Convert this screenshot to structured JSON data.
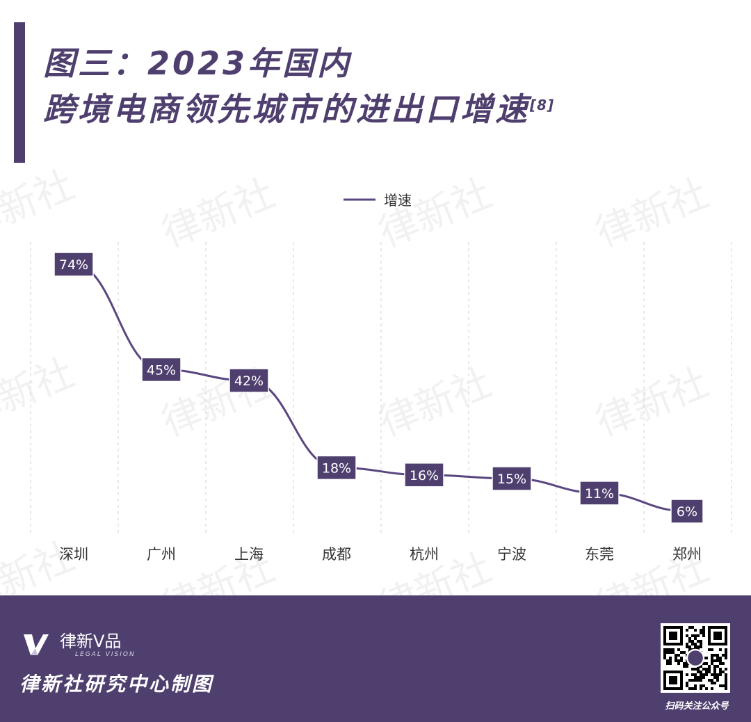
{
  "header": {
    "title_line1": "图三：2023年国内",
    "title_line2": "跨境电商领先城市的进出口增速",
    "reference": "[8]"
  },
  "watermark": {
    "text": "律新社"
  },
  "colors": {
    "brand": "#4f3f6e",
    "line": "#5a4680",
    "label_bg": "#4f3f6e",
    "grid": "#d9d9d9"
  },
  "chart_data": {
    "type": "line",
    "categories": [
      "深圳",
      "广州",
      "上海",
      "成都",
      "杭州",
      "宁波",
      "东莞",
      "郑州"
    ],
    "series": [
      {
        "name": "增速",
        "values": [
          74,
          45,
          42,
          18,
          16,
          15,
          11,
          6
        ],
        "unit": "%"
      }
    ],
    "data_labels": [
      "74%",
      "45%",
      "42%",
      "18%",
      "16%",
      "15%",
      "11%",
      "6%"
    ],
    "legend": "top-center",
    "grid": "vertical-dashed",
    "smooth": true
  },
  "footer": {
    "logo_name": "律新V品",
    "logo_sub": "LEGAL VISION",
    "credit": "律新社研究中心制图",
    "qr_caption": "扫码关注公众号",
    "qr_icon": "qr-code-icon"
  }
}
